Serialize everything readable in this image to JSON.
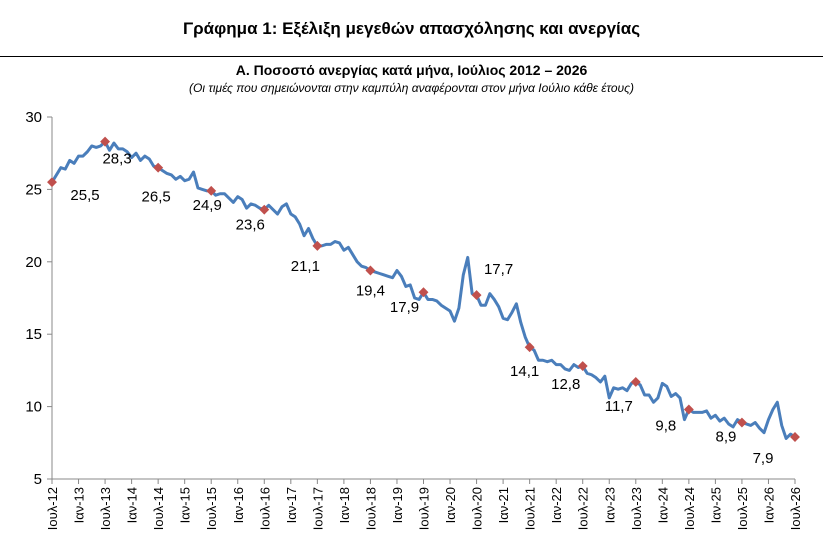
{
  "figure_title": "Γράφημα 1: Εξέλιξη μεγεθών απασχόλησης και ανεργίας",
  "chart_data": {
    "type": "line",
    "title": "Α. Ποσοστό ανεργίας κατά μήνα, Ιούλιος 2012 – 2026",
    "subtitle": "(Οι τιμές που σημειώνονται στην καμπύλη αναφέρονται στον μήνα Ιούλιο κάθε έτους)",
    "xlabel": "",
    "ylabel": "",
    "ylim": [
      5,
      30
    ],
    "yticks": [
      5,
      10,
      15,
      20,
      25,
      30
    ],
    "grid": false,
    "legend": "none",
    "line_color": "#4a7ebb",
    "marker_color": "#c0504d",
    "x_tick_labels": [
      "Ιουλ-12",
      "Ιαν-13",
      "Ιουλ-13",
      "Ιαν-14",
      "Ιουλ-14",
      "Ιαν-15",
      "Ιουλ-15",
      "Ιαν-16",
      "Ιουλ-16",
      "Ιαν-17",
      "Ιουλ-17",
      "Ιαν-18",
      "Ιουλ-18",
      "Ιαν-19",
      "Ιουλ-19",
      "Ιαν-20",
      "Ιουλ-20",
      "Ιαν-21",
      "Ιουλ-21",
      "Ιαν-22",
      "Ιουλ-22",
      "Ιαν-23",
      "Ιουλ-23",
      "Ιαν-24",
      "Ιουλ-24",
      "Ιαν-25",
      "Ιουλ-25",
      "Ιαν-26",
      "Ιουλ-26"
    ],
    "x": [
      "2012-07",
      "2012-08",
      "2012-09",
      "2012-10",
      "2012-11",
      "2012-12",
      "2013-01",
      "2013-02",
      "2013-03",
      "2013-04",
      "2013-05",
      "2013-06",
      "2013-07",
      "2013-08",
      "2013-09",
      "2013-10",
      "2013-11",
      "2013-12",
      "2014-01",
      "2014-02",
      "2014-03",
      "2014-04",
      "2014-05",
      "2014-06",
      "2014-07",
      "2014-08",
      "2014-09",
      "2014-10",
      "2014-11",
      "2014-12",
      "2015-01",
      "2015-02",
      "2015-03",
      "2015-04",
      "2015-05",
      "2015-06",
      "2015-07",
      "2015-08",
      "2015-09",
      "2015-10",
      "2015-11",
      "2015-12",
      "2016-01",
      "2016-02",
      "2016-03",
      "2016-04",
      "2016-05",
      "2016-06",
      "2016-07",
      "2016-08",
      "2016-09",
      "2016-10",
      "2016-11",
      "2016-12",
      "2017-01",
      "2017-02",
      "2017-03",
      "2017-04",
      "2017-05",
      "2017-06",
      "2017-07",
      "2017-08",
      "2017-09",
      "2017-10",
      "2017-11",
      "2017-12",
      "2018-01",
      "2018-02",
      "2018-03",
      "2018-04",
      "2018-05",
      "2018-06",
      "2018-07",
      "2018-08",
      "2018-09",
      "2018-10",
      "2018-11",
      "2018-12",
      "2019-01",
      "2019-02",
      "2019-03",
      "2019-04",
      "2019-05",
      "2019-06",
      "2019-07",
      "2019-08",
      "2019-09",
      "2019-10",
      "2019-11",
      "2019-12",
      "2020-01",
      "2020-02",
      "2020-03",
      "2020-04",
      "2020-05",
      "2020-06",
      "2020-07",
      "2020-08",
      "2020-09",
      "2020-10",
      "2020-11",
      "2020-12",
      "2021-01",
      "2021-02",
      "2021-03",
      "2021-04",
      "2021-05",
      "2021-06",
      "2021-07",
      "2021-08",
      "2021-09",
      "2021-10",
      "2021-11",
      "2021-12",
      "2022-01",
      "2022-02",
      "2022-03",
      "2022-04",
      "2022-05",
      "2022-06",
      "2022-07",
      "2022-08",
      "2022-09",
      "2022-10",
      "2022-11",
      "2022-12",
      "2023-01",
      "2023-02",
      "2023-03",
      "2023-04",
      "2023-05",
      "2023-06",
      "2023-07",
      "2023-08",
      "2023-09",
      "2023-10",
      "2023-11",
      "2023-12",
      "2024-01",
      "2024-02",
      "2024-03",
      "2024-04",
      "2024-05",
      "2024-06",
      "2024-07",
      "2024-08",
      "2024-09",
      "2024-10",
      "2024-11",
      "2024-12",
      "2025-01",
      "2025-02",
      "2025-03",
      "2025-04",
      "2025-05",
      "2025-06",
      "2025-07",
      "2025-08",
      "2025-09",
      "2025-10",
      "2025-11",
      "2025-12",
      "2026-01",
      "2026-02",
      "2026-03",
      "2026-04",
      "2026-05",
      "2026-06",
      "2026-07"
    ],
    "values": [
      25.5,
      26.0,
      26.5,
      26.4,
      27.0,
      26.8,
      27.3,
      27.3,
      27.6,
      28.0,
      27.9,
      28.0,
      28.3,
      27.7,
      28.2,
      27.8,
      27.8,
      27.6,
      27.2,
      27.5,
      27.0,
      27.3,
      27.1,
      26.6,
      26.5,
      26.3,
      26.1,
      26.0,
      25.7,
      25.9,
      25.6,
      25.7,
      26.2,
      25.1,
      25.0,
      24.9,
      24.9,
      24.6,
      24.7,
      24.7,
      24.4,
      24.1,
      24.5,
      24.3,
      23.7,
      24.0,
      23.9,
      23.7,
      23.6,
      23.9,
      23.6,
      23.3,
      23.8,
      24.0,
      23.3,
      23.1,
      22.6,
      21.8,
      22.3,
      21.6,
      21.1,
      21.1,
      21.2,
      21.2,
      21.4,
      21.3,
      20.8,
      21.0,
      20.5,
      20.0,
      19.7,
      19.6,
      19.4,
      19.3,
      19.2,
      19.1,
      19.0,
      18.9,
      19.4,
      19.0,
      18.3,
      18.4,
      17.5,
      17.4,
      17.9,
      17.4,
      17.4,
      17.3,
      17.0,
      16.8,
      16.6,
      15.9,
      16.8,
      19.1,
      20.3,
      17.8,
      17.7,
      17.0,
      17.0,
      17.8,
      17.4,
      16.9,
      16.1,
      16.0,
      16.5,
      17.1,
      15.8,
      14.8,
      14.1,
      13.9,
      13.2,
      13.2,
      13.1,
      13.2,
      12.9,
      12.9,
      12.6,
      12.5,
      12.9,
      12.7,
      12.8,
      12.3,
      12.2,
      12.0,
      11.7,
      12.1,
      10.6,
      11.3,
      11.2,
      11.3,
      11.1,
      11.6,
      11.7,
      11.5,
      10.8,
      10.8,
      10.3,
      10.6,
      11.6,
      11.4,
      10.7,
      10.9,
      10.6,
      9.1,
      9.8,
      9.6,
      9.6,
      9.6,
      9.7,
      9.2,
      9.4,
      9.0,
      9.2,
      8.8,
      8.6,
      9.1,
      8.9,
      8.8,
      8.7,
      8.9,
      8.5,
      8.2,
      9.1,
      9.8,
      10.3,
      8.7,
      7.8,
      8.1,
      7.9
    ],
    "annotations": [
      {
        "x": "2012-07",
        "value": 25.5,
        "label": "25,5"
      },
      {
        "x": "2013-07",
        "value": 28.3,
        "label": "28,3"
      },
      {
        "x": "2014-07",
        "value": 26.5,
        "label": "26,5"
      },
      {
        "x": "2015-07",
        "value": 24.9,
        "label": "24,9"
      },
      {
        "x": "2016-07",
        "value": 23.6,
        "label": "23,6"
      },
      {
        "x": "2017-07",
        "value": 21.1,
        "label": "21,1"
      },
      {
        "x": "2018-07",
        "value": 19.4,
        "label": "19,4"
      },
      {
        "x": "2019-07",
        "value": 17.9,
        "label": "17,9"
      },
      {
        "x": "2020-07",
        "value": 17.7,
        "label": "17,7"
      },
      {
        "x": "2021-07",
        "value": 14.1,
        "label": "14,1"
      },
      {
        "x": "2022-07",
        "value": 12.8,
        "label": "12,8"
      },
      {
        "x": "2023-07",
        "value": 11.7,
        "label": "11,7"
      },
      {
        "x": "2024-07",
        "value": 9.8,
        "label": "9,8"
      },
      {
        "x": "2025-07",
        "value": 8.9,
        "label": "8,9"
      },
      {
        "x": "2026-07",
        "value": 7.9,
        "label": "7,9"
      }
    ]
  }
}
